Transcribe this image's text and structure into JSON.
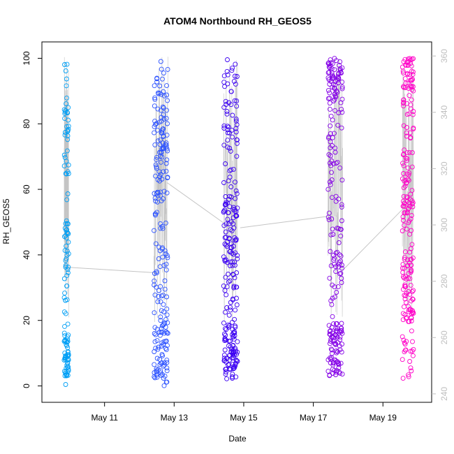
{
  "chart_data": {
    "type": "scatter",
    "title": "ATOM4 Northbound RH_GEOS5",
    "xlabel": "Date",
    "ylabel": "RH_GEOS5",
    "x_ticks": [
      "May 11",
      "May 13",
      "May 15",
      "May 17",
      "May 19"
    ],
    "x_tick_values": [
      11,
      13,
      15,
      17,
      19
    ],
    "xlim": [
      9.2,
      20.4
    ],
    "ylim": [
      -5,
      105
    ],
    "y_ticks": [
      0,
      20,
      40,
      60,
      80,
      100
    ],
    "y2_label": "",
    "y2_ticks": [
      240,
      260,
      280,
      300,
      320,
      340,
      360
    ],
    "y2_lim": [
      237,
      365
    ],
    "right_axis_color": "#bebebe",
    "point_color_scale": [
      "#00a8f0",
      "#0050ff",
      "#3a00ee",
      "#8400e0",
      "#ff00c8"
    ],
    "line_color": "#c4c4c4",
    "grid": false,
    "series": [
      {
        "flight": 1,
        "color": "#009ff5",
        "x_range": [
          9.84,
          9.97
        ],
        "clusters": [
          [
            0,
            100,
            60
          ],
          [
            3,
            16,
            40
          ],
          [
            30,
            50,
            18
          ],
          [
            75,
            85,
            12
          ]
        ],
        "trace_right": [
          {
            "x": 9.9,
            "y": 285
          },
          {
            "x": 12.5,
            "y": 283
          }
        ],
        "count": 130
      },
      {
        "flight": 2,
        "color": "#2c52ff",
        "x_range": [
          12.42,
          12.82
        ],
        "clusters": [
          [
            0,
            100,
            140
          ],
          [
            2,
            20,
            40
          ],
          [
            55,
            95,
            40
          ]
        ],
        "trace_right": [
          {
            "x": 12.8,
            "y": 315
          },
          {
            "x": 14.5,
            "y": 300
          }
        ],
        "count": 220
      },
      {
        "flight": 3,
        "color": "#3b00f2",
        "x_range": [
          14.42,
          14.82
        ],
        "clusters": [
          [
            2,
            100,
            160
          ],
          [
            5,
            20,
            50
          ],
          [
            30,
            60,
            30
          ]
        ],
        "trace_right": [
          {
            "x": 14.9,
            "y": 299
          },
          {
            "x": 17.4,
            "y": 303
          }
        ],
        "count": 240
      },
      {
        "flight": 4,
        "color": "#8400e6",
        "x_range": [
          17.42,
          17.84
        ],
        "clusters": [
          [
            3,
            100,
            150
          ],
          [
            3,
            20,
            40
          ],
          [
            88,
            100,
            40
          ]
        ],
        "trace_right": [
          {
            "x": 17.85,
            "y": 284
          },
          {
            "x": 19.6,
            "y": 306
          }
        ],
        "count": 230
      },
      {
        "flight": 5,
        "color": "#ff00c8",
        "x_range": [
          19.56,
          19.88
        ],
        "clusters": [
          [
            2,
            100,
            130
          ],
          [
            20,
            40,
            40
          ],
          [
            50,
            58,
            20
          ],
          [
            90,
            100,
            25
          ]
        ],
        "count": 215
      }
    ]
  }
}
